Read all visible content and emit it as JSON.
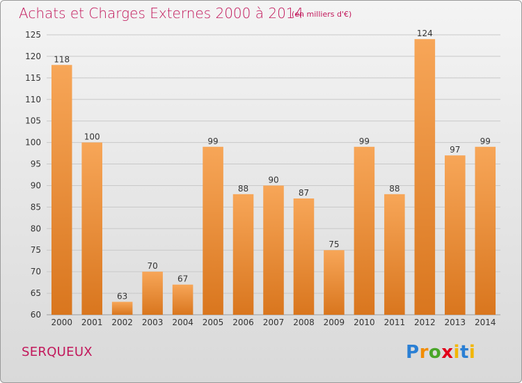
{
  "header": {
    "title": "Achats et Charges Externes 2000 à 2014",
    "unit": "(en milliers d'€)"
  },
  "footer": {
    "commune": "SERQUEUX",
    "logo_text": "Proxiti"
  },
  "colors": {
    "bar_top": "#f7a658",
    "bar_bottom": "#d9761e",
    "title": "#c2185b",
    "grid": "#c8c8c8"
  },
  "chart_data": {
    "type": "bar",
    "title": "Achats et Charges Externes 2000 à 2014",
    "subtitle": "(en milliers d'€)",
    "categories": [
      "2000",
      "2001",
      "2002",
      "2003",
      "2004",
      "2005",
      "2006",
      "2007",
      "2008",
      "2009",
      "2010",
      "2011",
      "2012",
      "2013",
      "2014"
    ],
    "values": [
      118,
      100,
      63,
      70,
      67,
      99,
      88,
      90,
      87,
      75,
      99,
      88,
      124,
      97,
      99
    ],
    "ylim": [
      60,
      125
    ],
    "yticks": [
      60,
      65,
      70,
      75,
      80,
      85,
      90,
      95,
      100,
      105,
      110,
      115,
      120,
      125
    ],
    "grid": true,
    "legend": "none"
  }
}
